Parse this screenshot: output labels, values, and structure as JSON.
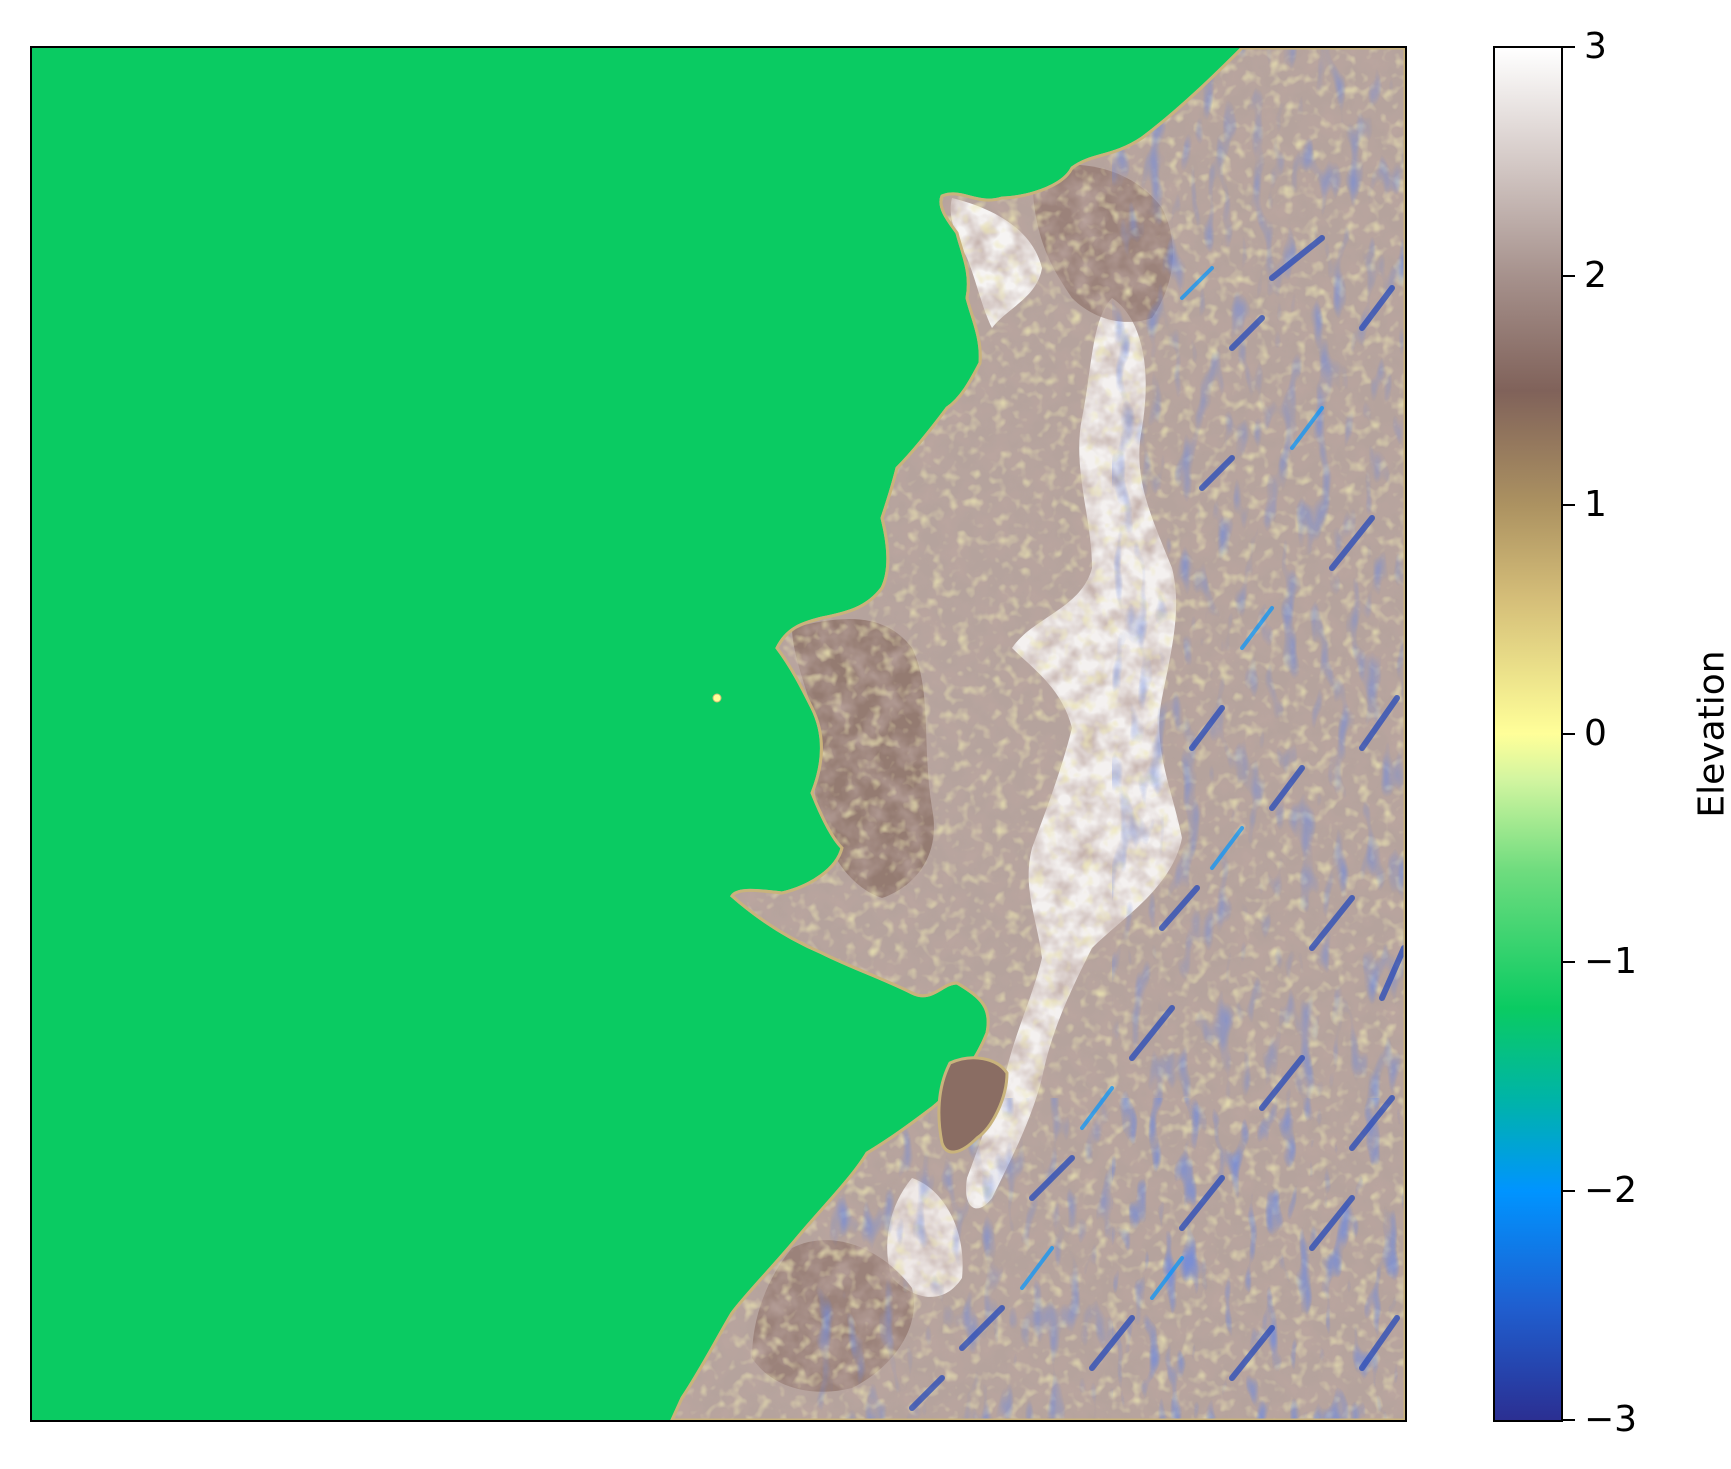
{
  "map": {
    "type": "elevation-raster",
    "colormap": "terrain",
    "sea_color": "#0acb62",
    "axes_ticks_visible": false,
    "features": [
      "coastline",
      "offshore-islet",
      "nearshore-island",
      "highland-plateau",
      "incised-valleys"
    ]
  },
  "colorbar": {
    "label": "Elevation",
    "range": [
      -3,
      3
    ],
    "ticks": [
      {
        "value": 3,
        "label": "3"
      },
      {
        "value": 2,
        "label": "2"
      },
      {
        "value": 1,
        "label": "1"
      },
      {
        "value": 0,
        "label": "0"
      },
      {
        "value": -1,
        "label": "−1"
      },
      {
        "value": -2,
        "label": "−2"
      },
      {
        "value": -3,
        "label": "−3"
      }
    ],
    "stops": [
      {
        "value": -3,
        "color": "#2b2f92"
      },
      {
        "value": -2.5,
        "color": "#1f5fd0"
      },
      {
        "value": -2,
        "color": "#0094ff"
      },
      {
        "value": -1.6,
        "color": "#00b4a8"
      },
      {
        "value": -1.2,
        "color": "#0acb62"
      },
      {
        "value": -0.6,
        "color": "#6edc7e"
      },
      {
        "value": -0.2,
        "color": "#d2f5a0"
      },
      {
        "value": 0,
        "color": "#ffff99"
      },
      {
        "value": 0.6,
        "color": "#d4bd78"
      },
      {
        "value": 1,
        "color": "#ac9261"
      },
      {
        "value": 1.5,
        "color": "#80625a"
      },
      {
        "value": 2,
        "color": "#a6918c"
      },
      {
        "value": 2.5,
        "color": "#d4c9c6"
      },
      {
        "value": 3,
        "color": "#ffffff"
      }
    ]
  }
}
